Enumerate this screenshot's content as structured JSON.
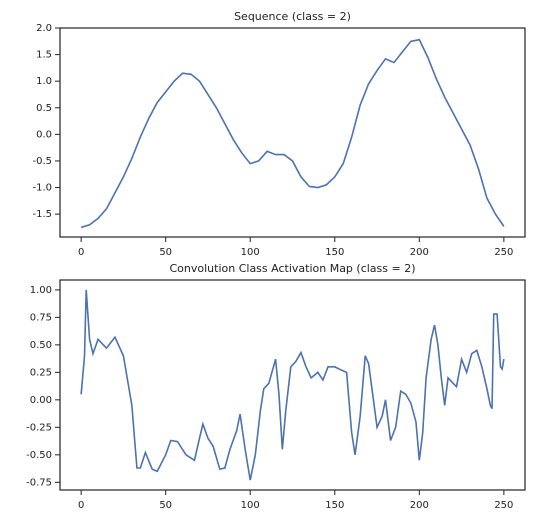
{
  "chart_data": [
    {
      "type": "line",
      "title": "Sequence (class = 2)",
      "x": [
        0,
        5,
        10,
        15,
        20,
        25,
        30,
        35,
        40,
        45,
        50,
        55,
        60,
        65,
        70,
        75,
        80,
        85,
        90,
        95,
        100,
        105,
        110,
        115,
        120,
        125,
        130,
        135,
        140,
        145,
        150,
        155,
        160,
        165,
        170,
        175,
        180,
        185,
        190,
        195,
        200,
        205,
        210,
        215,
        220,
        225,
        230,
        235,
        240,
        245,
        250
      ],
      "series": [
        {
          "color": "#4c72b0",
          "values": [
            -1.75,
            -1.7,
            -1.58,
            -1.4,
            -1.1,
            -0.8,
            -0.45,
            -0.05,
            0.3,
            0.6,
            0.8,
            1.0,
            1.15,
            1.13,
            1.0,
            0.75,
            0.5,
            0.2,
            -0.1,
            -0.35,
            -0.55,
            -0.5,
            -0.32,
            -0.38,
            -0.38,
            -0.5,
            -0.8,
            -0.98,
            -1.0,
            -0.95,
            -0.8,
            -0.55,
            -0.05,
            0.55,
            0.95,
            1.2,
            1.42,
            1.35,
            1.55,
            1.75,
            1.78,
            1.45,
            1.05,
            0.7,
            0.4,
            0.1,
            -0.2,
            -0.65,
            -1.2,
            -1.5,
            -1.73
          ]
        }
      ],
      "xlim": [
        -12.5,
        262.5
      ],
      "xticks": [
        0,
        50,
        100,
        150,
        200,
        250
      ],
      "ylim": [
        -1.93,
        2.0
      ],
      "yticks": [
        -1.5,
        {
          "value": -1,
          "label": "-1.0"
        },
        -0.5,
        {
          "value": 0,
          "label": "0.0"
        },
        0.5,
        {
          "value": 1,
          "label": "1.0"
        },
        1.5,
        {
          "value": 2,
          "label": "2.0"
        }
      ]
    },
    {
      "type": "line",
      "title": "Convolution Class Activation Map (class = 2)",
      "x": [
        0,
        2,
        3,
        5,
        7,
        10,
        15,
        20,
        25,
        30,
        33,
        35,
        38,
        42,
        45,
        50,
        53,
        57,
        62,
        67,
        70,
        72,
        75,
        78,
        82,
        85,
        88,
        92,
        94,
        97,
        100,
        103,
        106,
        108,
        111,
        115,
        117,
        119,
        121,
        124,
        127,
        130,
        133,
        136,
        140,
        143,
        146,
        150,
        154,
        157,
        160,
        162,
        165,
        168,
        170,
        172,
        175,
        178,
        180,
        183,
        186,
        189,
        192,
        195,
        198,
        200,
        202,
        204,
        207,
        209,
        211,
        213,
        215,
        217,
        220,
        222,
        225,
        228,
        231,
        234,
        237,
        240,
        242,
        243,
        244,
        246,
        248,
        249,
        250
      ],
      "series": [
        {
          "color": "#4c72b0",
          "values": [
            0.05,
            0.4,
            1.0,
            0.55,
            0.42,
            0.55,
            0.47,
            0.57,
            0.4,
            -0.05,
            -0.62,
            -0.62,
            -0.48,
            -0.63,
            -0.65,
            -0.5,
            -0.37,
            -0.38,
            -0.5,
            -0.55,
            -0.35,
            -0.22,
            -0.35,
            -0.42,
            -0.63,
            -0.62,
            -0.45,
            -0.28,
            -0.13,
            -0.45,
            -0.73,
            -0.5,
            -0.1,
            0.1,
            0.15,
            0.37,
            0.05,
            -0.45,
            -0.1,
            0.3,
            0.35,
            0.43,
            0.3,
            0.2,
            0.25,
            0.18,
            0.3,
            0.3,
            0.27,
            0.25,
            -0.3,
            -0.5,
            -0.15,
            0.4,
            0.33,
            0.1,
            -0.25,
            -0.15,
            0.0,
            -0.37,
            -0.25,
            0.08,
            0.05,
            -0.03,
            -0.2,
            -0.55,
            -0.3,
            0.2,
            0.55,
            0.68,
            0.5,
            0.2,
            -0.05,
            0.2,
            0.15,
            0.12,
            0.37,
            0.25,
            0.42,
            0.45,
            0.3,
            0.1,
            -0.05,
            -0.08,
            0.78,
            0.78,
            0.3,
            0.28,
            0.37
          ]
        }
      ],
      "xlim": [
        -12.5,
        262.5
      ],
      "xticks": [
        0,
        50,
        100,
        150,
        200,
        250
      ],
      "ylim": [
        -0.82,
        1.09
      ],
      "yticks": [
        -0.75,
        {
          "value": -0.5,
          "label": "-0.50"
        },
        -0.25,
        {
          "value": 0,
          "label": "0.00"
        },
        0.25,
        {
          "value": 0.5,
          "label": "0.50"
        },
        0.75,
        {
          "value": 1,
          "label": "1.00"
        }
      ]
    }
  ]
}
